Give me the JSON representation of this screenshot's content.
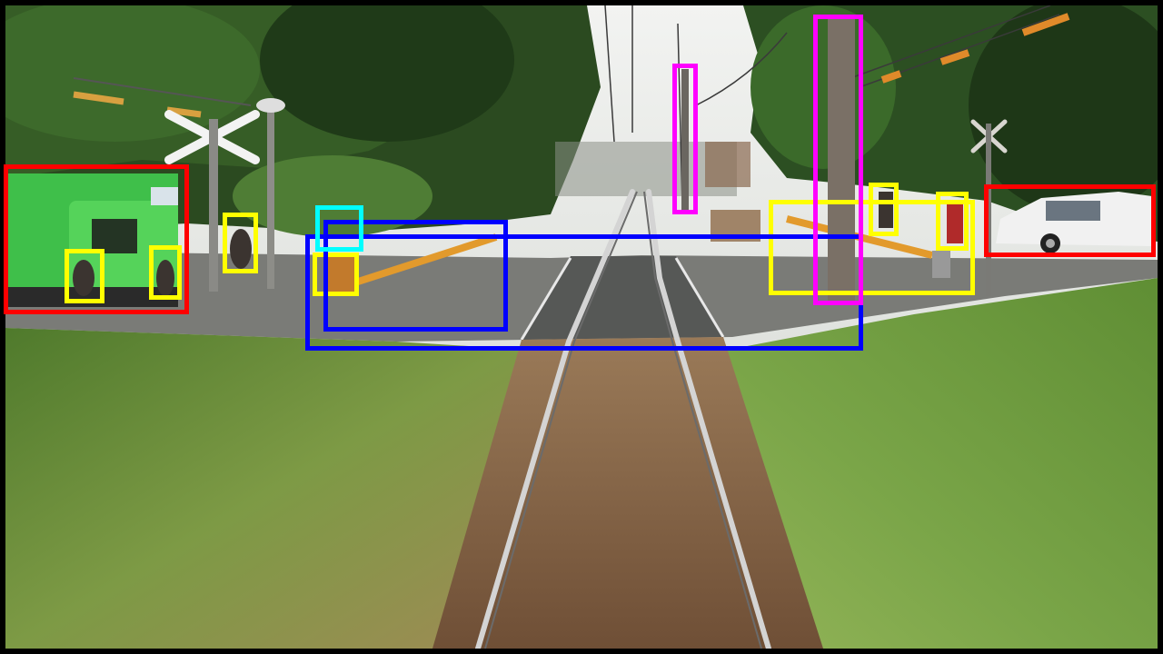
{
  "image": {
    "kind": "train forward-view photo at level crossing with detection overlay"
  },
  "palette": {
    "sky": "#dfe1df",
    "trees_dark": "#1f3a18",
    "trees_mid": "#3c6a2a",
    "grass": "#6f8f3c",
    "grass_light": "#8fb24e",
    "ballast": "#8a6a4a",
    "road": "#5c5e5c",
    "rail": "#c9c9c9",
    "truck_green": "#3fbf4a",
    "car_white": "#f1f1f1",
    "barrier_orange": "#e29a2c"
  },
  "detection_colors": {
    "vehicle": "#ff0000",
    "person": "#ffff00",
    "crossing": "#0000ff",
    "pole": "#ff00ff",
    "signal": "#00ffff"
  },
  "detections": [
    {
      "class": "vehicle",
      "label": "truck"
    },
    {
      "class": "vehicle",
      "label": "car"
    },
    {
      "class": "person",
      "label": "person-1"
    },
    {
      "class": "person",
      "label": "person-2"
    },
    {
      "class": "person",
      "label": "person-3"
    },
    {
      "class": "person",
      "label": "person-4"
    },
    {
      "class": "person",
      "label": "person-5"
    },
    {
      "class": "person",
      "label": "person-6"
    },
    {
      "class": "person",
      "label": "person-7"
    },
    {
      "class": "crossing",
      "label": "level-crossing-large"
    },
    {
      "class": "crossing",
      "label": "level-crossing-small"
    },
    {
      "class": "pole",
      "label": "pole-1"
    },
    {
      "class": "pole",
      "label": "pole-2"
    },
    {
      "class": "signal",
      "label": "signal"
    }
  ]
}
